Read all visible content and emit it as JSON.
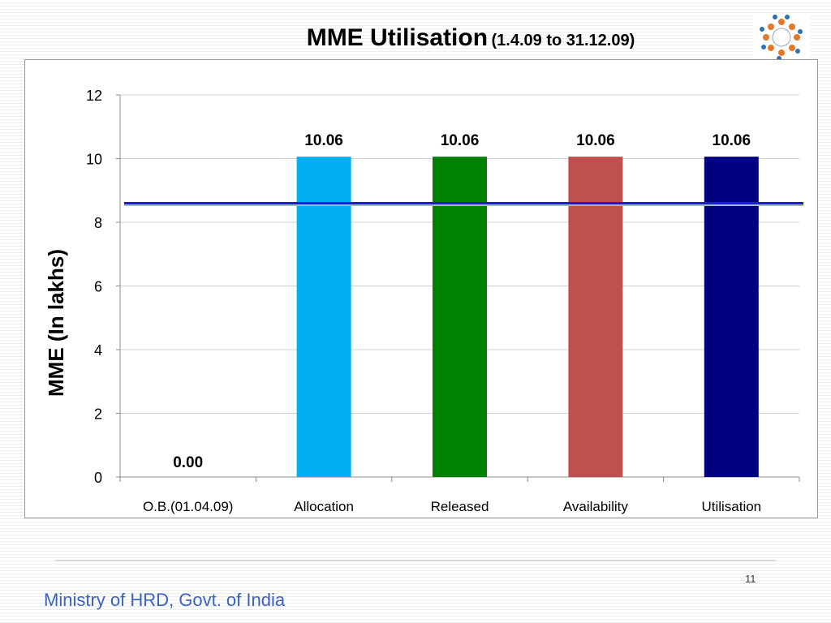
{
  "slide": {
    "title_main": "MME Utilisation",
    "title_sub": "(1.4.09 to 31.12.09)",
    "page_number": "11",
    "footer": "Ministry of HRD, Govt. of India"
  },
  "logo": {
    "icon": "circle-of-people-icon"
  },
  "chart_data": {
    "type": "bar",
    "title": "",
    "xlabel": "",
    "ylabel": "MME (In lakhs)",
    "categories": [
      "O.B.(01.04.09)",
      "Allocation",
      "Released",
      "Availability",
      "Utilisation"
    ],
    "values": [
      0.0,
      10.06,
      10.06,
      10.06,
      10.06
    ],
    "data_labels": [
      "0.00",
      "10.06",
      "10.06",
      "10.06",
      "10.06"
    ],
    "colors": [
      "#00b0f0",
      "#00b0f0",
      "#008000",
      "#c0504d",
      "#000080"
    ],
    "ylim": [
      0,
      12
    ],
    "yticks": [
      0,
      2,
      4,
      6,
      8,
      10,
      12
    ],
    "reference_line": {
      "value": 8.6,
      "color": "#1c1cd6"
    },
    "grid": true,
    "legend": "none"
  }
}
